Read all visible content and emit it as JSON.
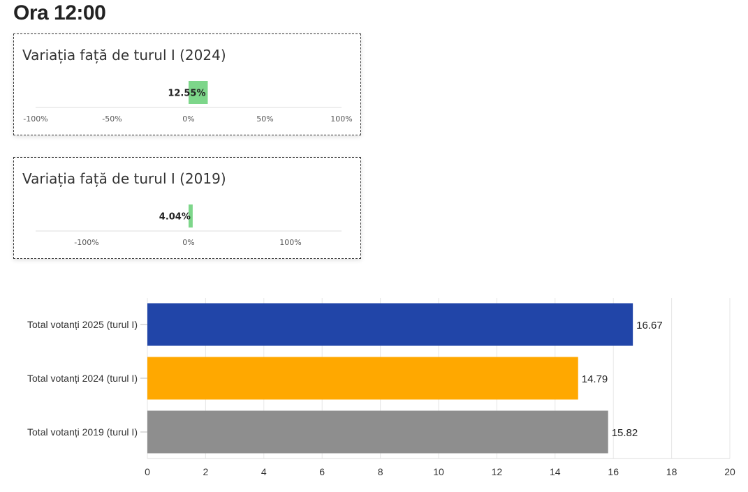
{
  "header": {
    "title": "Ora 12:00"
  },
  "chart_data": [
    {
      "type": "bar",
      "orientation": "horizontal",
      "title": "Variația față de turul I (2024)",
      "values": [
        12.55
      ],
      "value_label": "12.55%",
      "xlim": [
        -100,
        100
      ],
      "ticks": [
        -100,
        -50,
        0,
        50,
        100
      ],
      "tick_labels": [
        "-100%",
        "-50%",
        "0%",
        "50%",
        "100%"
      ],
      "color": "#7dd68a"
    },
    {
      "type": "bar",
      "orientation": "horizontal",
      "title": "Variația față de turul I (2019)",
      "values": [
        4.04
      ],
      "value_label": "4.04%",
      "xlim": [
        -150,
        150
      ],
      "ticks": [
        -100,
        0,
        100
      ],
      "tick_labels": [
        "-100%",
        "0%",
        "100%"
      ],
      "color": "#7dd68a"
    },
    {
      "type": "bar",
      "orientation": "horizontal",
      "categories": [
        "Total votanți 2025 (turul I)",
        "Total votanți 2024 (turul I)",
        "Total votanți 2019 (turul I)"
      ],
      "values": [
        16.67,
        14.79,
        15.82
      ],
      "value_labels": [
        "16.67",
        "14.79",
        "15.82"
      ],
      "colors": [
        "#2145a8",
        "#ffa800",
        "#8e8e8e"
      ],
      "xlim": [
        0,
        20
      ],
      "ticks": [
        0,
        2,
        4,
        6,
        8,
        10,
        12,
        14,
        16,
        18,
        20
      ],
      "grid": true
    }
  ]
}
